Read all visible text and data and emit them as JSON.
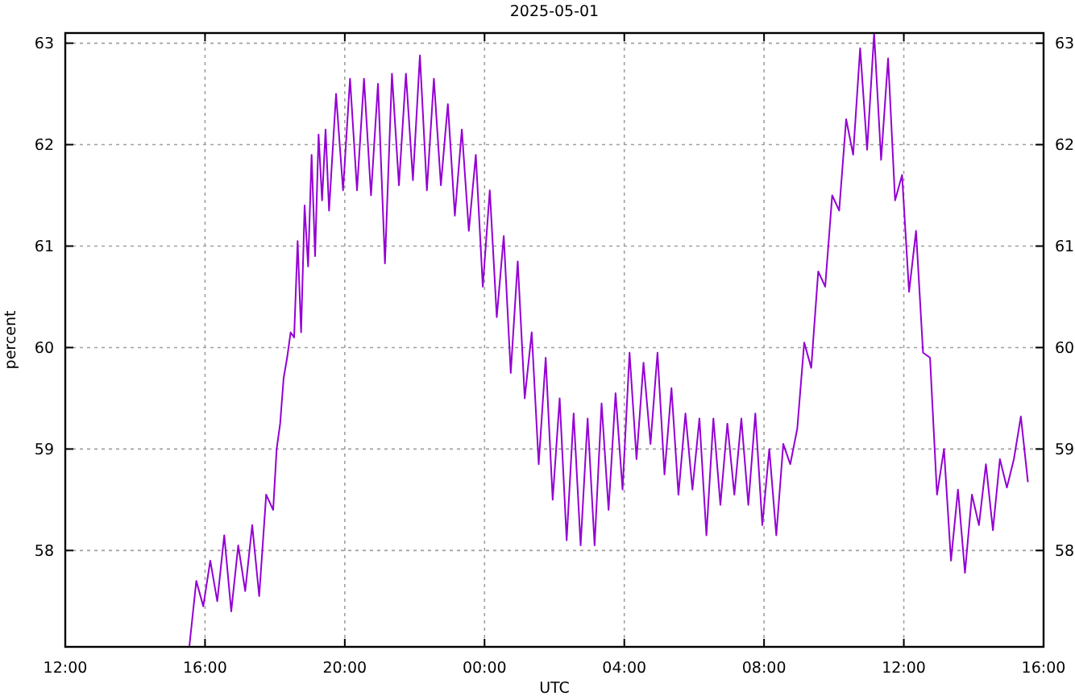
{
  "chart_data": {
    "type": "line",
    "title": "2025-05-01",
    "xlabel": "UTC",
    "ylabel": "percent",
    "x": [
      "2025-04-30T15:33",
      "2025-04-30T15:45",
      "2025-04-30T15:57",
      "2025-04-30T16:09",
      "2025-04-30T16:21",
      "2025-04-30T16:33",
      "2025-04-30T16:45",
      "2025-04-30T16:57",
      "2025-04-30T17:09",
      "2025-04-30T17:21",
      "2025-04-30T17:33",
      "2025-04-30T17:45",
      "2025-04-30T17:57",
      "2025-04-30T18:03",
      "2025-04-30T18:09",
      "2025-04-30T18:15",
      "2025-04-30T18:21",
      "2025-04-30T18:27",
      "2025-04-30T18:33",
      "2025-04-30T18:39",
      "2025-04-30T18:45",
      "2025-04-30T18:51",
      "2025-04-30T18:57",
      "2025-04-30T19:03",
      "2025-04-30T19:09",
      "2025-04-30T19:15",
      "2025-04-30T19:21",
      "2025-04-30T19:27",
      "2025-04-30T19:33",
      "2025-04-30T19:45",
      "2025-04-30T19:57",
      "2025-04-30T20:09",
      "2025-04-30T20:21",
      "2025-04-30T20:33",
      "2025-04-30T20:45",
      "2025-04-30T20:57",
      "2025-04-30T21:09",
      "2025-04-30T21:21",
      "2025-04-30T21:33",
      "2025-04-30T21:45",
      "2025-04-30T21:57",
      "2025-04-30T22:09",
      "2025-04-30T22:21",
      "2025-04-30T22:33",
      "2025-04-30T22:45",
      "2025-04-30T22:57",
      "2025-04-30T23:09",
      "2025-04-30T23:21",
      "2025-04-30T23:33",
      "2025-04-30T23:45",
      "2025-04-30T23:57",
      "2025-05-01T00:09",
      "2025-05-01T00:21",
      "2025-05-01T00:33",
      "2025-05-01T00:45",
      "2025-05-01T00:57",
      "2025-05-01T01:09",
      "2025-05-01T01:21",
      "2025-05-01T01:33",
      "2025-05-01T01:45",
      "2025-05-01T01:57",
      "2025-05-01T02:09",
      "2025-05-01T02:21",
      "2025-05-01T02:33",
      "2025-05-01T02:45",
      "2025-05-01T02:57",
      "2025-05-01T03:09",
      "2025-05-01T03:21",
      "2025-05-01T03:33",
      "2025-05-01T03:45",
      "2025-05-01T03:57",
      "2025-05-01T04:09",
      "2025-05-01T04:21",
      "2025-05-01T04:33",
      "2025-05-01T04:45",
      "2025-05-01T04:57",
      "2025-05-01T05:09",
      "2025-05-01T05:21",
      "2025-05-01T05:33",
      "2025-05-01T05:45",
      "2025-05-01T05:57",
      "2025-05-01T06:09",
      "2025-05-01T06:21",
      "2025-05-01T06:33",
      "2025-05-01T06:45",
      "2025-05-01T06:57",
      "2025-05-01T07:09",
      "2025-05-01T07:21",
      "2025-05-01T07:33",
      "2025-05-01T07:45",
      "2025-05-01T07:57",
      "2025-05-01T08:09",
      "2025-05-01T08:21",
      "2025-05-01T08:33",
      "2025-05-01T08:45",
      "2025-05-01T08:57",
      "2025-05-01T09:09",
      "2025-05-01T09:21",
      "2025-05-01T09:33",
      "2025-05-01T09:45",
      "2025-05-01T09:57",
      "2025-05-01T10:09",
      "2025-05-01T10:21",
      "2025-05-01T10:33",
      "2025-05-01T10:45",
      "2025-05-01T10:57",
      "2025-05-01T11:09",
      "2025-05-01T11:21",
      "2025-05-01T11:33",
      "2025-05-01T11:45",
      "2025-05-01T11:57",
      "2025-05-01T12:09",
      "2025-05-01T12:21",
      "2025-05-01T12:33",
      "2025-05-01T12:45",
      "2025-05-01T12:57",
      "2025-05-01T13:09",
      "2025-05-01T13:21",
      "2025-05-01T13:33",
      "2025-05-01T13:45",
      "2025-05-01T13:57",
      "2025-05-01T14:09",
      "2025-05-01T14:21",
      "2025-05-01T14:33",
      "2025-05-01T14:45",
      "2025-05-01T14:57",
      "2025-05-01T15:09",
      "2025-05-01T15:21",
      "2025-05-01T15:33"
    ],
    "series": [
      {
        "color": "#9400d3",
        "values": [
          57.05,
          57.7,
          57.45,
          57.9,
          57.5,
          58.15,
          57.4,
          58.05,
          57.6,
          58.25,
          57.55,
          58.55,
          58.4,
          59.0,
          59.25,
          59.7,
          59.9,
          60.15,
          60.1,
          61.05,
          60.15,
          61.4,
          60.8,
          61.9,
          60.9,
          62.1,
          61.45,
          62.15,
          61.35,
          62.5,
          61.55,
          62.65,
          61.55,
          62.65,
          61.5,
          62.6,
          60.83,
          62.7,
          61.6,
          62.7,
          61.65,
          62.88,
          61.55,
          62.65,
          61.6,
          62.4,
          61.3,
          62.15,
          61.15,
          61.9,
          60.6,
          61.55,
          60.3,
          61.1,
          59.75,
          60.85,
          59.5,
          60.15,
          58.85,
          59.9,
          58.5,
          59.5,
          58.1,
          59.35,
          58.05,
          59.3,
          58.05,
          59.45,
          58.4,
          59.55,
          58.6,
          59.95,
          58.9,
          59.85,
          59.05,
          59.95,
          58.75,
          59.6,
          58.55,
          59.35,
          58.6,
          59.3,
          58.15,
          59.3,
          58.45,
          59.25,
          58.55,
          59.3,
          58.45,
          59.35,
          58.25,
          59.0,
          58.15,
          59.05,
          58.85,
          59.2,
          60.05,
          59.8,
          60.75,
          60.6,
          61.5,
          61.35,
          62.25,
          61.9,
          62.95,
          61.95,
          63.1,
          61.85,
          62.85,
          61.45,
          61.7,
          60.55,
          61.15,
          59.95,
          59.9,
          58.55,
          59.0,
          57.9,
          58.6,
          57.78,
          58.55,
          58.25,
          58.85,
          58.2,
          58.9,
          58.62,
          58.9,
          59.32,
          58.68
        ]
      }
    ],
    "xlim": [
      "2025-04-30T12:00",
      "2025-05-01T16:00"
    ],
    "xticks": [
      {
        "value": "2025-04-30T12:00",
        "label": "12:00"
      },
      {
        "value": "2025-04-30T16:00",
        "label": "16:00"
      },
      {
        "value": "2025-04-30T20:00",
        "label": "20:00"
      },
      {
        "value": "2025-05-01T00:00",
        "label": "00:00"
      },
      {
        "value": "2025-05-01T04:00",
        "label": "04:00"
      },
      {
        "value": "2025-05-01T08:00",
        "label": "08:00"
      },
      {
        "value": "2025-05-01T12:00",
        "label": "12:00"
      },
      {
        "value": "2025-05-01T16:00",
        "label": "16:00"
      }
    ],
    "ylim": [
      57.05,
      63.1
    ],
    "yticks": [
      58,
      59,
      60,
      61,
      62,
      63
    ],
    "y2lim": [
      57.05,
      63.1
    ],
    "y2ticks": [
      58,
      59,
      60,
      61,
      62,
      63
    ],
    "grid": true,
    "line_style": "solid"
  }
}
